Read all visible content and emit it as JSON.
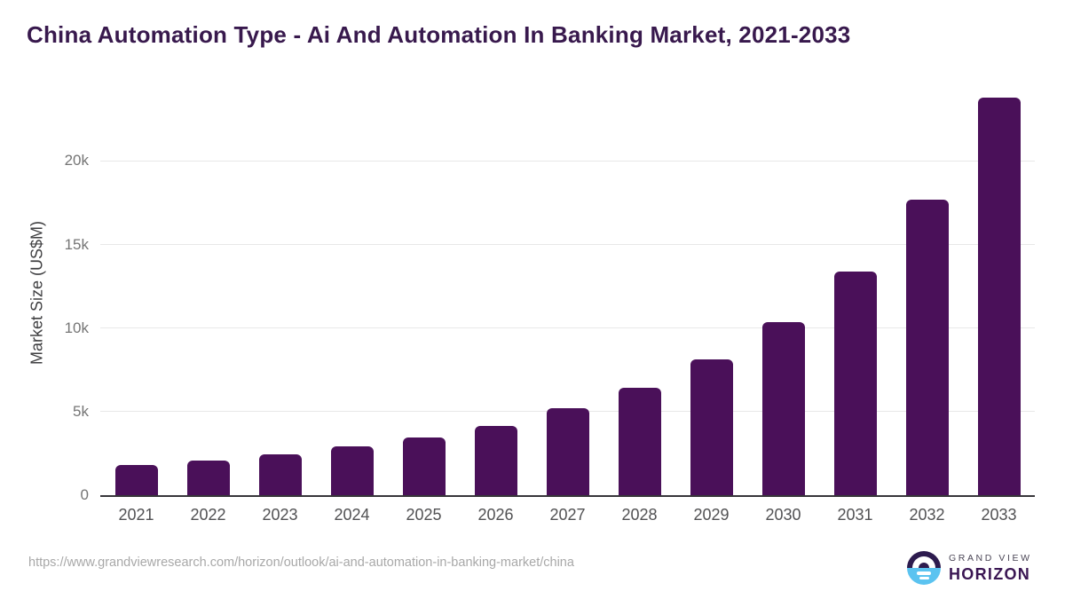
{
  "title": "China Automation Type - Ai And Automation In Banking Market, 2021-2033",
  "footer": {
    "source_url": "https://www.grandviewresearch.com/horizon/outlook/ai-and-automation-in-banking-market/china",
    "logo": {
      "line1": "GRAND VIEW",
      "line2": "HORIZON"
    }
  },
  "colors": {
    "background": "#ffffff",
    "bar": "#4a1059",
    "title_text": "#38194d",
    "gridline": "#e8e8e8",
    "axis_line": "#37363a",
    "tick_label": "#757575",
    "x_label": "#515153",
    "y_label": "#3e3e40",
    "url_text": "#a8a8a8",
    "logo_top": "#2d1b4e",
    "logo_bottom": "#5bc3f0",
    "logo_text_primary": "#4b4656",
    "logo_text_secondary": "#3a1653"
  },
  "chart_data": {
    "type": "bar",
    "title": "China Automation Type - Ai And Automation In Banking Market, 2021-2033",
    "categories": [
      "2021",
      "2022",
      "2023",
      "2024",
      "2025",
      "2026",
      "2027",
      "2028",
      "2029",
      "2030",
      "2031",
      "2032",
      "2033"
    ],
    "values": [
      1820,
      2070,
      2420,
      2900,
      3430,
      4160,
      5180,
      6400,
      8120,
      10340,
      13400,
      17680,
      23790
    ],
    "xlabel": "",
    "ylabel": "Market Size (US$M)",
    "ylim": [
      0,
      23790
    ],
    "yticks": [
      {
        "value": 0,
        "label": "0"
      },
      {
        "value": 5000,
        "label": "5k"
      },
      {
        "value": 10000,
        "label": "10k"
      },
      {
        "value": 15000,
        "label": "15k"
      },
      {
        "value": 20000,
        "label": "20k"
      }
    ],
    "grid": true,
    "legend": false
  }
}
